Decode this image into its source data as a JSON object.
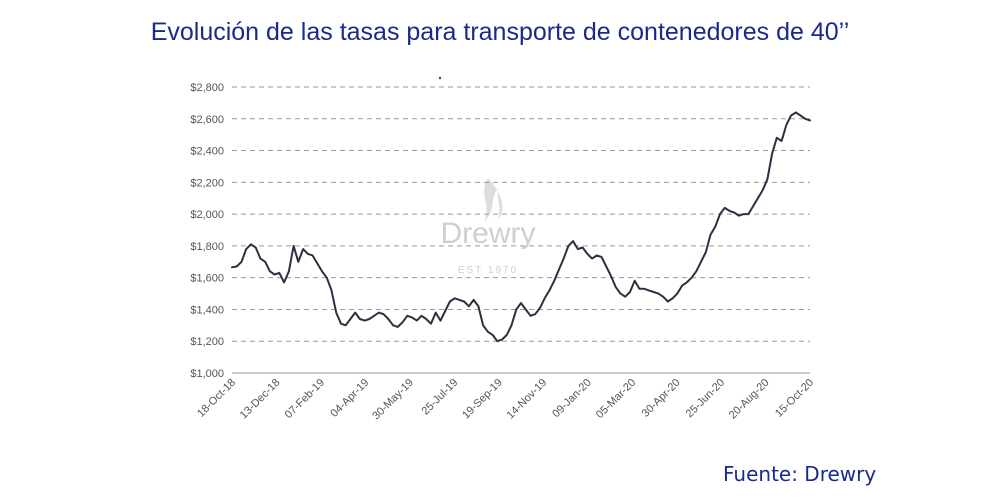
{
  "chart_data": {
    "type": "line",
    "title": "Evolución de las tasas para transporte de contenedores de 40’’",
    "source": "Fuente: Drewry",
    "watermark": {
      "brand": "Drewry",
      "est": "EST 1970"
    },
    "ylim": [
      1000,
      2800
    ],
    "ytick_step": 200,
    "ytick_labels": [
      "$1,000",
      "$1,200",
      "$1,400",
      "$1,600",
      "$1,800",
      "$2,000",
      "$2,200",
      "$2,400",
      "$2,600",
      "$2,800"
    ],
    "grid": true,
    "line_color": "#2a3140",
    "xlabels": [
      "18-Oct-18",
      "13-Dec-18",
      "07-Feb-19",
      "04-Apr-19",
      "30-May-19",
      "25-Jul-19",
      "19-Sep-19",
      "14-Nov-19",
      "09-Jan-20",
      "05-Mar-20",
      "30-Apr-20",
      "25-Jun-20",
      "20-Aug-20",
      "15-Oct-20"
    ],
    "x_start": "18-Oct-18",
    "series": [
      {
        "values": [
          1665,
          1670,
          1700,
          1780,
          1810,
          1790,
          1720,
          1700,
          1640,
          1620,
          1630,
          1570,
          1640,
          1800,
          1700,
          1780,
          1750,
          1740,
          1690,
          1640,
          1600,
          1520,
          1380,
          1310,
          1300,
          1340,
          1380,
          1340,
          1330,
          1340,
          1360,
          1380,
          1370,
          1340,
          1300,
          1290,
          1320,
          1360,
          1350,
          1330,
          1360,
          1340,
          1310,
          1380,
          1330,
          1390,
          1450,
          1470,
          1460,
          1450,
          1420,
          1460,
          1420,
          1300,
          1260,
          1240,
          1200,
          1210,
          1240,
          1300,
          1400,
          1440,
          1400,
          1360,
          1370,
          1410,
          1470,
          1520,
          1580,
          1650,
          1720,
          1800,
          1830,
          1780,
          1790,
          1750,
          1720,
          1740,
          1730,
          1670,
          1610,
          1540,
          1500,
          1480,
          1510,
          1580,
          1530,
          1530,
          1520,
          1510,
          1500,
          1480,
          1450,
          1470,
          1500,
          1550,
          1570,
          1600,
          1640,
          1700,
          1760,
          1870,
          1920,
          2000,
          2040,
          2020,
          2010,
          1990,
          2000,
          2000,
          2050,
          2100,
          2150,
          2220,
          2380,
          2480,
          2460,
          2560,
          2620,
          2640,
          2620,
          2600,
          2590
        ]
      }
    ]
  }
}
